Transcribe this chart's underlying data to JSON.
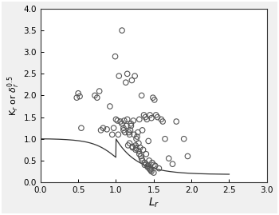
{
  "title": "",
  "xlabel": "L$_r$",
  "ylabel": "K$_r$ or $\\delta_r^{0.5}$",
  "xlim": [
    0.0,
    3.0
  ],
  "ylim": [
    0.0,
    4.0
  ],
  "xticks": [
    0.0,
    0.5,
    1.0,
    1.5,
    2.0,
    2.5,
    3.0
  ],
  "yticks": [
    0.0,
    0.5,
    1.0,
    1.5,
    2.0,
    2.5,
    3.0,
    3.5,
    4.0
  ],
  "scatter_x": [
    0.48,
    0.5,
    0.52,
    0.54,
    0.72,
    0.75,
    0.78,
    0.8,
    0.83,
    0.88,
    0.92,
    0.95,
    0.97,
    0.99,
    1.0,
    1.02,
    1.03,
    1.04,
    1.06,
    1.08,
    1.08,
    1.1,
    1.1,
    1.11,
    1.12,
    1.13,
    1.14,
    1.15,
    1.15,
    1.16,
    1.17,
    1.18,
    1.18,
    1.19,
    1.2,
    1.2,
    1.21,
    1.22,
    1.22,
    1.23,
    1.24,
    1.25,
    1.26,
    1.26,
    1.27,
    1.27,
    1.28,
    1.29,
    1.3,
    1.3,
    1.31,
    1.31,
    1.32,
    1.33,
    1.34,
    1.34,
    1.35,
    1.35,
    1.36,
    1.37,
    1.38,
    1.38,
    1.39,
    1.4,
    1.4,
    1.41,
    1.42,
    1.42,
    1.43,
    1.44,
    1.44,
    1.45,
    1.45,
    1.46,
    1.47,
    1.47,
    1.48,
    1.49,
    1.5,
    1.5,
    1.51,
    1.52,
    1.53,
    1.55,
    1.57,
    1.6,
    1.62,
    1.65,
    1.7,
    1.75,
    1.8,
    1.9,
    1.95
  ],
  "scatter_y": [
    1.95,
    2.05,
    1.98,
    1.25,
    2.0,
    1.95,
    2.1,
    1.2,
    1.25,
    1.22,
    1.75,
    1.1,
    1.25,
    2.9,
    1.45,
    1.42,
    1.1,
    2.45,
    1.4,
    1.35,
    3.5,
    1.25,
    1.2,
    1.42,
    1.15,
    2.3,
    1.3,
    1.45,
    2.5,
    0.85,
    1.15,
    1.1,
    0.9,
    1.2,
    1.35,
    1.3,
    2.35,
    0.82,
    0.8,
    1.42,
    1.1,
    2.45,
    0.75,
    0.85,
    1.0,
    0.78,
    1.05,
    1.15,
    0.9,
    0.72,
    1.45,
    0.65,
    0.8,
    0.6,
    2.0,
    0.55,
    1.2,
    0.5,
    0.75,
    1.55,
    0.45,
    0.4,
    1.5,
    0.42,
    0.65,
    1.45,
    0.38,
    0.35,
    0.95,
    0.32,
    0.5,
    1.55,
    0.3,
    0.28,
    1.48,
    0.25,
    0.45,
    1.95,
    0.22,
    0.4,
    1.9,
    0.38,
    1.55,
    1.5,
    0.32,
    1.45,
    1.4,
    1.0,
    0.55,
    0.42,
    1.4,
    1.0,
    0.6
  ],
  "background_color": "#f0f0f0",
  "plot_bg_color": "#ffffff",
  "scatter_color": "none",
  "scatter_edgecolor": "#555555",
  "scatter_size": 22,
  "scatter_linewidth": 0.8,
  "curve_color": "#333333",
  "curve_linewidth": 0.9,
  "xlabel_fontsize": 10,
  "ylabel_fontsize": 8,
  "tick_fontsize": 7.5,
  "figsize": [
    3.5,
    2.69
  ],
  "dpi": 100
}
